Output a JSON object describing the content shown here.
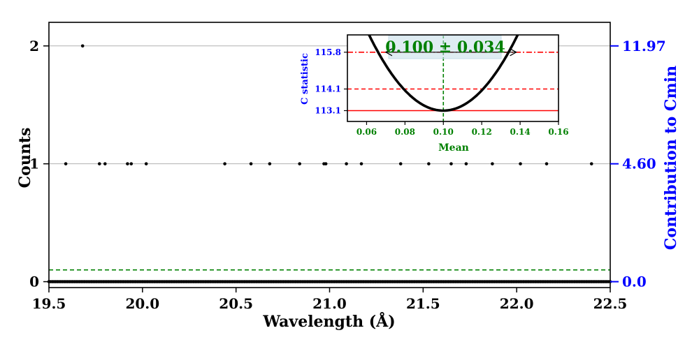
{
  "chart_data": [
    {
      "type": "scatter",
      "xlabel": "Wavelength (Å)",
      "ylabel": "Counts",
      "ylabel_right": "Contribution to Cmin",
      "xlim": [
        19.5,
        22.5
      ],
      "ylim": [
        -0.05,
        2.2
      ],
      "x_ticks": [
        "19.5",
        "20.0",
        "20.5",
        "21.0",
        "21.5",
        "22.0",
        "22.5"
      ],
      "y_ticks": [
        "0",
        "1",
        "2"
      ],
      "right_ticks": [
        "0.0",
        "4.60",
        "11.97"
      ],
      "grid_y": [
        1,
        2
      ],
      "mean_level": 0.1,
      "points_count1": [
        19.59,
        19.77,
        19.8,
        19.92,
        19.94,
        20.02,
        20.44,
        20.58,
        20.68,
        20.84,
        20.97,
        20.98,
        21.09,
        21.17,
        21.38,
        21.53,
        21.65,
        21.73,
        21.87,
        22.02,
        22.16,
        22.4
      ],
      "points_count2": [
        19.68
      ],
      "zero_count_points_per_unit": 110,
      "colors": {
        "data": "#000000",
        "mean_line": "#008000",
        "right_axis": "#0000ff",
        "grid": "#b0b0b0"
      }
    },
    {
      "type": "line",
      "xlabel": "Mean",
      "ylabel": "C statistic",
      "xlim": [
        0.05,
        0.16
      ],
      "ylim": [
        112.6,
        116.6
      ],
      "x_ticks": [
        "0.06",
        "0.08",
        "0.10",
        "0.12",
        "0.14",
        "0.16"
      ],
      "y_ticks": [
        "113.1",
        "114.1",
        "115.8"
      ],
      "curve": {
        "vertex_x": 0.1,
        "vertex_y": 113.1,
        "half_width_at_delta_2_7": 0.034
      },
      "hlines": [
        {
          "y": 115.8,
          "style": "dashdot",
          "color": "#ff0000"
        },
        {
          "y": 114.1,
          "style": "dashed",
          "color": "#ff0000"
        },
        {
          "y": 113.1,
          "style": "solid",
          "color": "#ff0000"
        }
      ],
      "vline": {
        "x": 0.1,
        "color": "#008000"
      },
      "interval": [
        0.07,
        0.138
      ],
      "annotation": "0.100 ± 0.034",
      "colors": {
        "curve": "#000000",
        "ylabel": "#0000ff",
        "ticks_y": "#0000ff",
        "ticks_x": "#008000"
      }
    }
  ]
}
